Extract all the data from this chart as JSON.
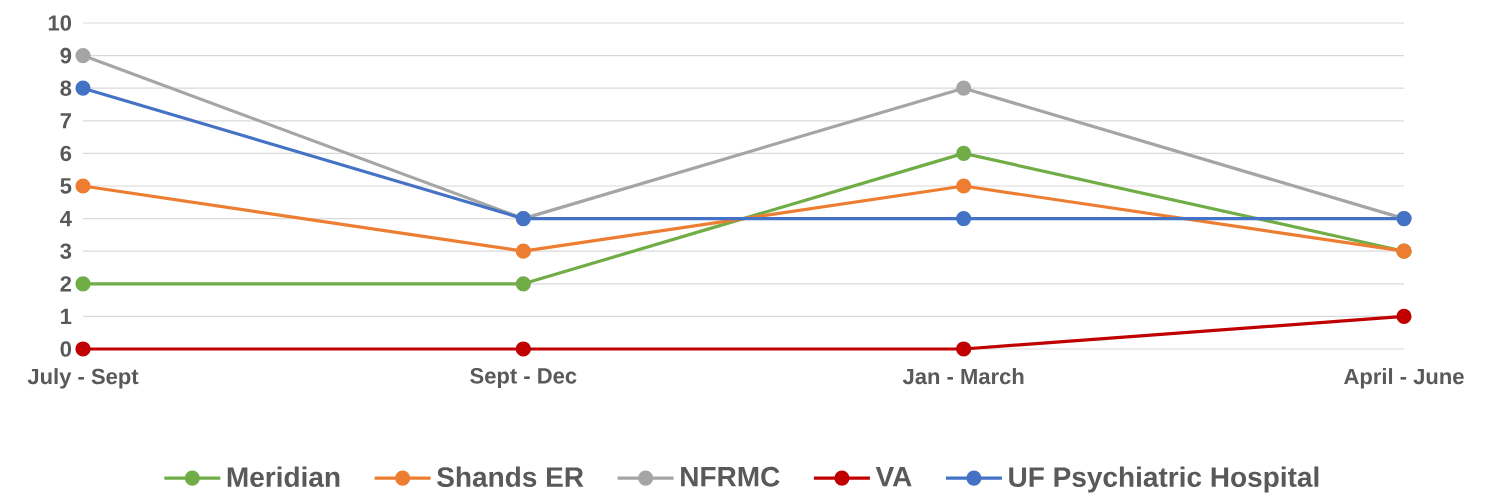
{
  "chart_data": {
    "type": "line",
    "categories": [
      "July - Sept",
      "Sept - Dec",
      "Jan - March",
      "April - June"
    ],
    "series": [
      {
        "name": "Meridian",
        "color": "#70ad47",
        "values": [
          2,
          2,
          6,
          3
        ]
      },
      {
        "name": "Shands ER",
        "color": "#ed7d31",
        "values": [
          5,
          3,
          5,
          3
        ]
      },
      {
        "name": "NFRMC",
        "color": "#a5a5a5",
        "values": [
          9,
          4,
          8,
          4
        ]
      },
      {
        "name": "VA",
        "color": "#c00000",
        "values": [
          0,
          0,
          0,
          1
        ]
      },
      {
        "name": "UF Psychiatric Hospital",
        "color": "#4472c4",
        "values": [
          8,
          4,
          4,
          4
        ]
      }
    ],
    "ylim": [
      0,
      10
    ],
    "yticks": [
      0,
      1,
      2,
      3,
      4,
      5,
      6,
      7,
      8,
      9,
      10
    ],
    "grid": "y",
    "legend": "bottom",
    "marker": "circle",
    "line_style": "solid"
  }
}
